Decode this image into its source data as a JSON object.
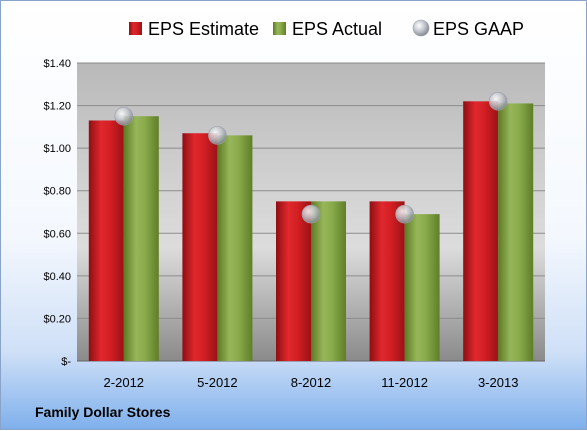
{
  "chart_data": {
    "type": "bar",
    "title": "",
    "xlabel": "",
    "ylabel": "",
    "categories": [
      "2-2012",
      "5-2012",
      "8-2012",
      "11-2012",
      "3-2013"
    ],
    "series": [
      {
        "name": "EPS Estimate",
        "kind": "bar",
        "color": "#c0161c",
        "values": [
          1.13,
          1.07,
          0.75,
          0.75,
          1.22
        ]
      },
      {
        "name": "EPS Actual",
        "kind": "bar",
        "color": "#7a9a3a",
        "values": [
          1.15,
          1.06,
          0.75,
          0.69,
          1.21
        ]
      },
      {
        "name": "EPS GAAP",
        "kind": "marker",
        "color": "#b8bcc4",
        "values": [
          1.15,
          1.06,
          0.69,
          0.69,
          1.22
        ]
      }
    ],
    "ylim": [
      0,
      1.4
    ],
    "yticks": [
      0,
      0.2,
      0.4,
      0.6,
      0.8,
      1.0,
      1.2,
      1.4
    ],
    "ytick_labels": [
      "$-",
      "$0.20",
      "$0.40",
      "$0.60",
      "$0.80",
      "$1.00",
      "$1.20",
      "$1.40"
    ],
    "grid": true,
    "legend": "top"
  },
  "footer": {
    "company": "Family Dollar Stores"
  }
}
